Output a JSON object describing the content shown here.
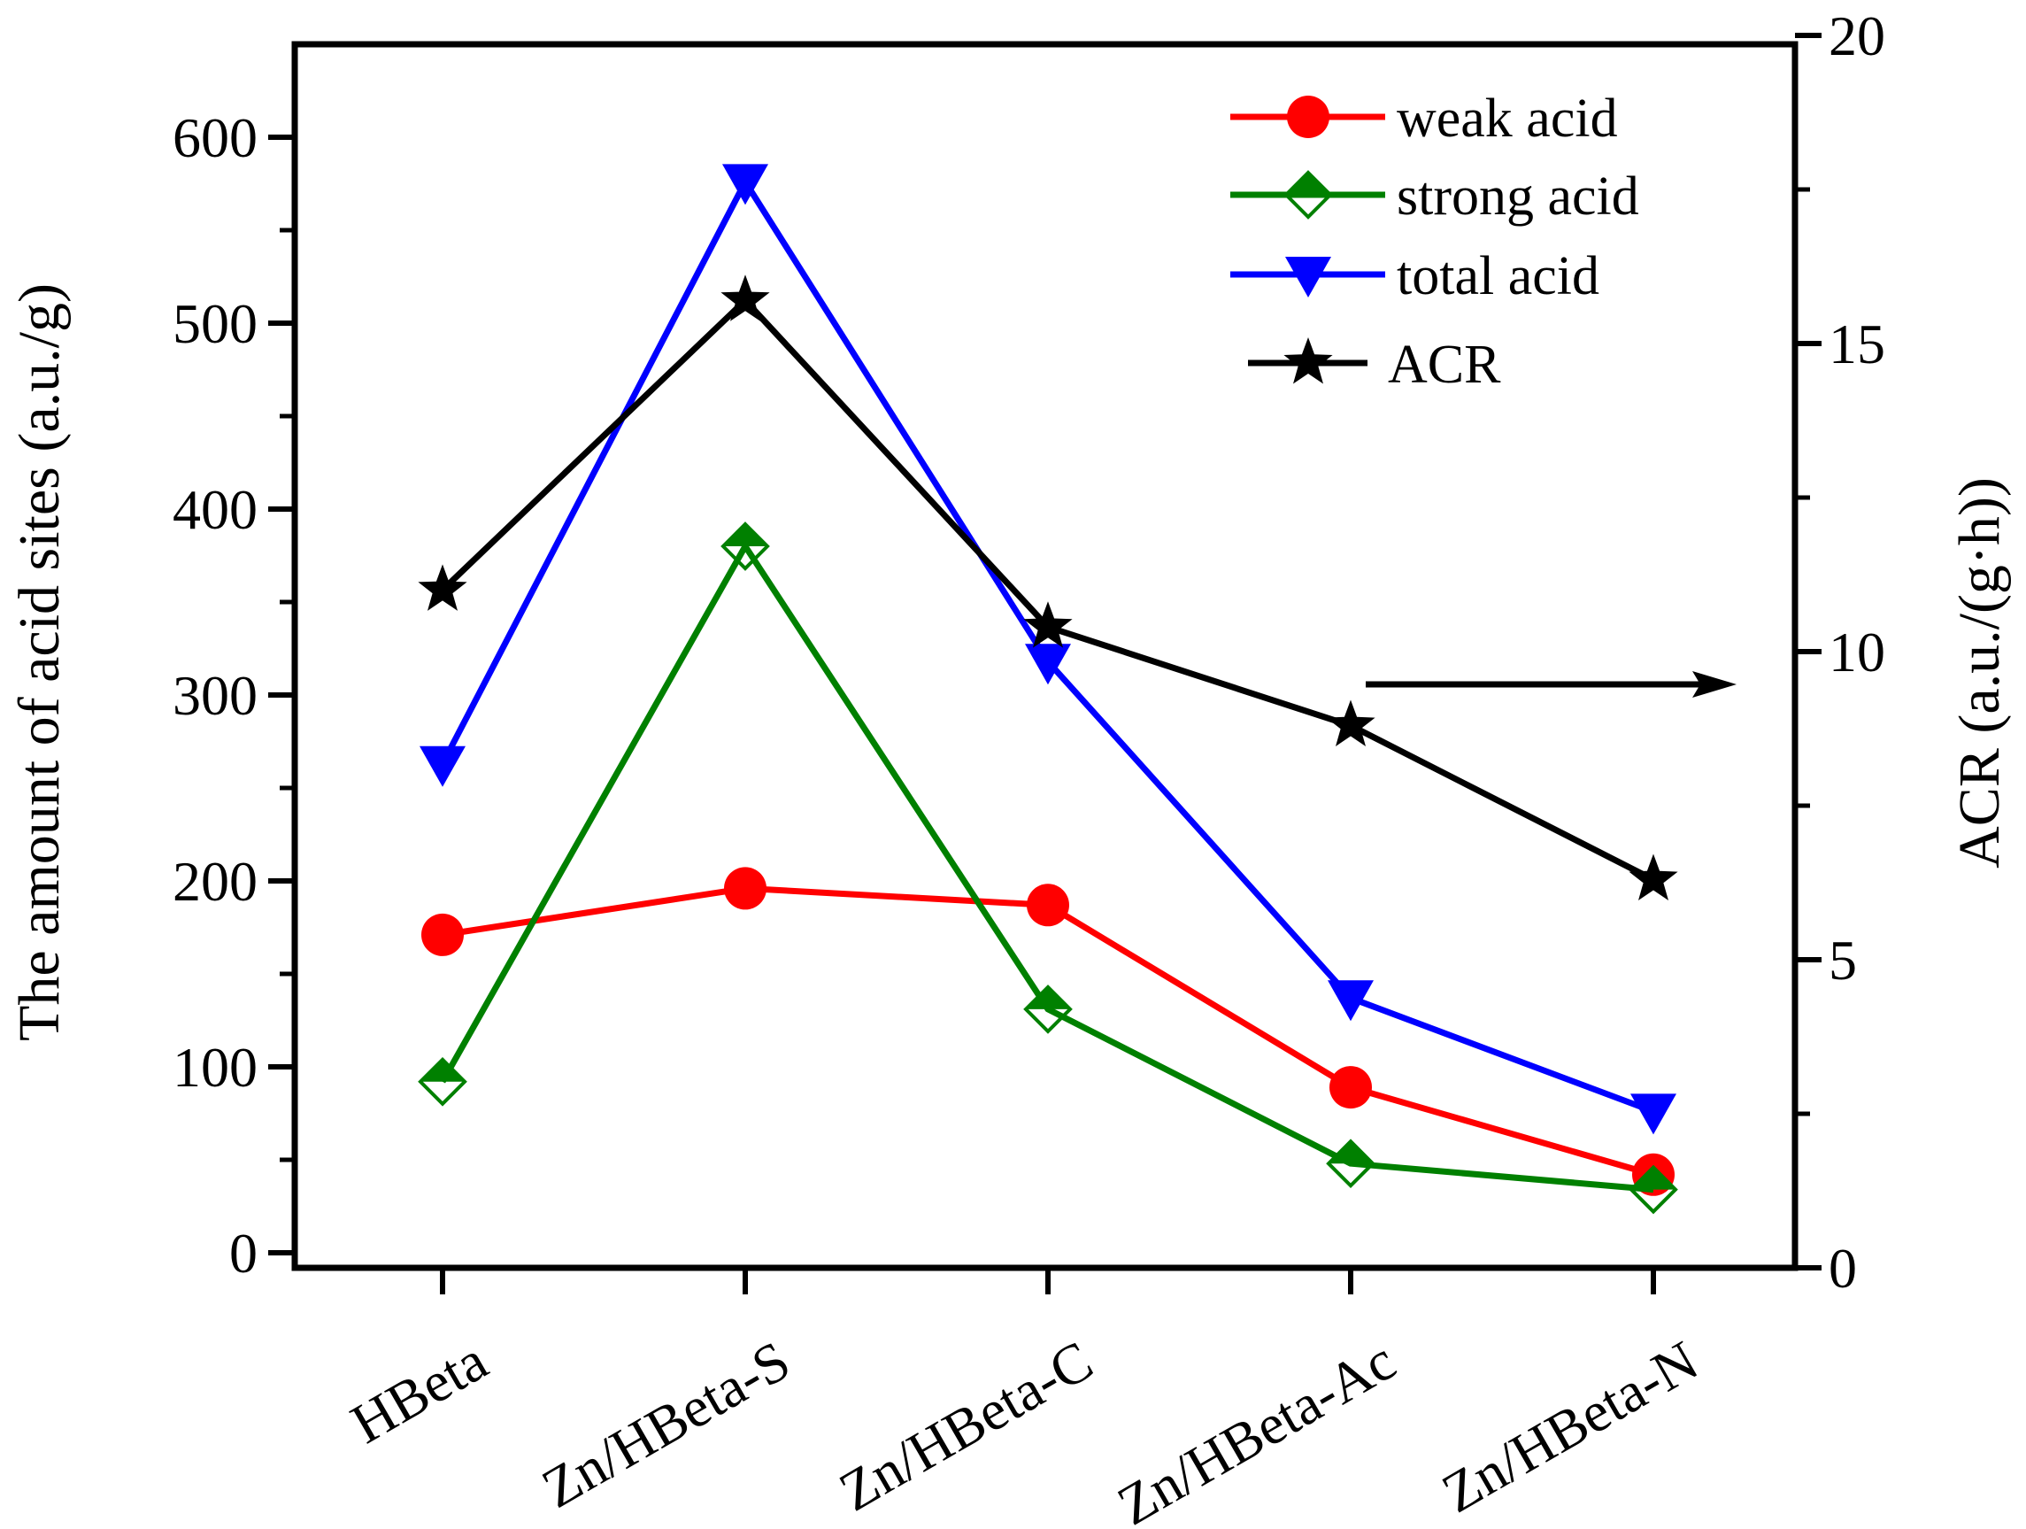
{
  "chart_data": {
    "type": "line",
    "categories": [
      "HBeta",
      "Zn/HBeta-S",
      "Zn/HBeta-C",
      "Zn/HBeta-Ac",
      "Zn/HBeta-N"
    ],
    "left_axis": {
      "label": "The amount of acid sites (a.u./g)",
      "ylim": [
        0,
        650
      ],
      "ticks": [
        0,
        100,
        200,
        300,
        400,
        500,
        600
      ],
      "tick_labels": [
        "0",
        "100",
        "200",
        "300",
        "400",
        "500",
        "600"
      ]
    },
    "right_axis": {
      "label": "ACR (a.u./(g·h))",
      "ylim": [
        0,
        20
      ],
      "ticks": [
        0,
        5,
        10,
        15,
        20
      ],
      "tick_labels": [
        "0",
        "5",
        "10",
        "15",
        "20"
      ]
    },
    "series": [
      {
        "name": "weak acid",
        "axis": "left",
        "color": "#ff0000",
        "marker": "circle",
        "values": [
          171,
          196,
          187,
          89,
          42
        ]
      },
      {
        "name": "strong acid",
        "axis": "left",
        "color": "#008000",
        "marker": "diamond-half",
        "values": [
          92,
          380,
          131,
          48,
          34
        ]
      },
      {
        "name": "total acid",
        "axis": "left",
        "color": "#0000ff",
        "marker": "triangle-down",
        "values": [
          263,
          576,
          318,
          137,
          76
        ]
      },
      {
        "name": "ACR",
        "axis": "right",
        "color": "#000000",
        "marker": "star",
        "values": [
          11.0,
          15.7,
          10.4,
          8.8,
          6.3
        ]
      }
    ],
    "legend_position": "top-right",
    "annotation": {
      "type": "arrow",
      "points_to": "right-axis",
      "anchor_series": "ACR"
    }
  }
}
